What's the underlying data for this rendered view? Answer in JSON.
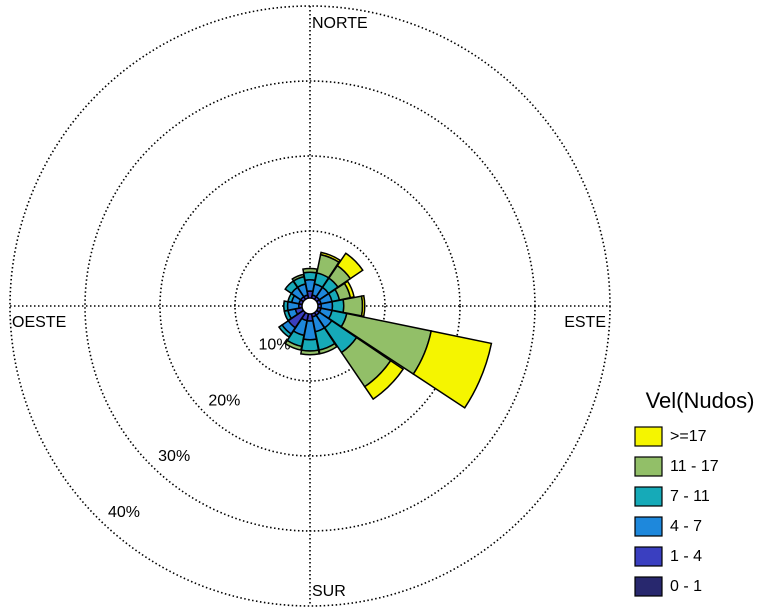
{
  "chart_data": {
    "type": "windrose",
    "categories": [
      "NORTE",
      null,
      null,
      null,
      "ESTE",
      null,
      null,
      null,
      "SUR",
      null,
      null,
      null,
      "OESTE",
      null,
      null,
      null
    ],
    "rlim": [
      0,
      40
    ],
    "rticks": [
      {
        "value": 10,
        "label": "10%"
      },
      {
        "value": 20,
        "label": "20%"
      },
      {
        "value": 30,
        "label": "30%"
      },
      {
        "value": 40,
        "label": "40%"
      }
    ],
    "grid": true,
    "legend_title": "Vel(Nudos)",
    "legend": "right",
    "series": [
      {
        "name": "0 - 1",
        "color": "#28286e",
        "values": [
          0.5,
          0.5,
          0.5,
          0.5,
          0.5,
          0.5,
          0.5,
          0.5,
          0.5,
          0.5,
          1,
          0.5,
          0.5,
          0.5,
          0.5,
          0.5
        ]
      },
      {
        "name": "1 - 4",
        "color": "#3a3fc0",
        "values": [
          1.5,
          1,
          1,
          1,
          1,
          1,
          1,
          1,
          1.5,
          1.5,
          2.5,
          1.5,
          1,
          1,
          1,
          1
        ]
      },
      {
        "name": "4 - 7",
        "color": "#1e88dc",
        "values": [
          1.5,
          1.5,
          1.5,
          1.5,
          1.5,
          1.5,
          2,
          2,
          2.5,
          2,
          1,
          1,
          1.5,
          1,
          1.5,
          1.5
        ]
      },
      {
        "name": "7 - 11",
        "color": "#16aab8",
        "values": [
          1,
          1.5,
          1.5,
          1,
          1.5,
          2,
          4,
          2.5,
          1.5,
          1.5,
          0.5,
          0.5,
          0.5,
          0.5,
          1,
          1
        ]
      },
      {
        "name": "11 - 17",
        "color": "#92bf68",
        "values": [
          0.5,
          2.5,
          2,
          1.5,
          2.5,
          11.5,
          5.5,
          0.5,
          0.5,
          0.5,
          0,
          0,
          0,
          0,
          0,
          0.3
        ]
      },
      {
        "name": ">=17",
        "color": "#f5f500",
        "values": [
          0,
          0.3,
          2,
          0.5,
          0.3,
          8.2,
          2,
          0,
          0,
          0,
          0,
          0,
          0,
          0,
          0,
          0
        ]
      }
    ]
  }
}
